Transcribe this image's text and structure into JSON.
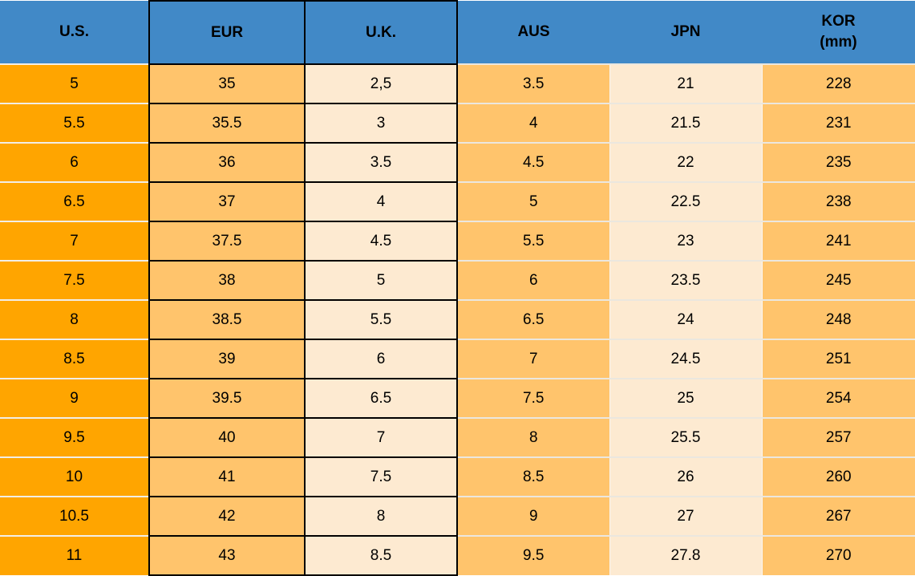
{
  "chart_data": {
    "type": "table",
    "columns": [
      {
        "key": "us",
        "label": "U.S.",
        "sublabel": ""
      },
      {
        "key": "eur",
        "label": "EUR",
        "sublabel": ""
      },
      {
        "key": "uk",
        "label": "U.K.",
        "sublabel": ""
      },
      {
        "key": "aus",
        "label": "AUS",
        "sublabel": ""
      },
      {
        "key": "jpn",
        "label": "JPN",
        "sublabel": ""
      },
      {
        "key": "kor",
        "label": "KOR",
        "sublabel": "(mm)"
      }
    ],
    "rows": [
      [
        "5",
        "35",
        "2,5",
        "3.5",
        "21",
        "228"
      ],
      [
        "5.5",
        "35.5",
        "3",
        "4",
        "21.5",
        "231"
      ],
      [
        "6",
        "36",
        "3.5",
        "4.5",
        "22",
        "235"
      ],
      [
        "6.5",
        "37",
        "4",
        "5",
        "22.5",
        "238"
      ],
      [
        "7",
        "37.5",
        "4.5",
        "5.5",
        "23",
        "241"
      ],
      [
        "7.5",
        "38",
        "5",
        "6",
        "23.5",
        "245"
      ],
      [
        "8",
        "38.5",
        "5.5",
        "6.5",
        "24",
        "248"
      ],
      [
        "8.5",
        "39",
        "6",
        "7",
        "24.5",
        "251"
      ],
      [
        "9",
        "39.5",
        "6.5",
        "7.5",
        "25",
        "254"
      ],
      [
        "9.5",
        "40",
        "7",
        "8",
        "25.5",
        "257"
      ],
      [
        "10",
        "41",
        "7.5",
        "8.5",
        "26",
        "260"
      ],
      [
        "10.5",
        "42",
        "8",
        "9",
        "27",
        "267"
      ],
      [
        "11",
        "43",
        "8.5",
        "9.5",
        "27.8",
        "270"
      ]
    ]
  },
  "colors": {
    "header_blue": "#4189C7",
    "us_orange": "#FFA500",
    "light_orange": "#FFC46C",
    "cream": "#FDEAD1",
    "cell_border_black": "#000000",
    "row_separator": "#EBE7DF"
  }
}
